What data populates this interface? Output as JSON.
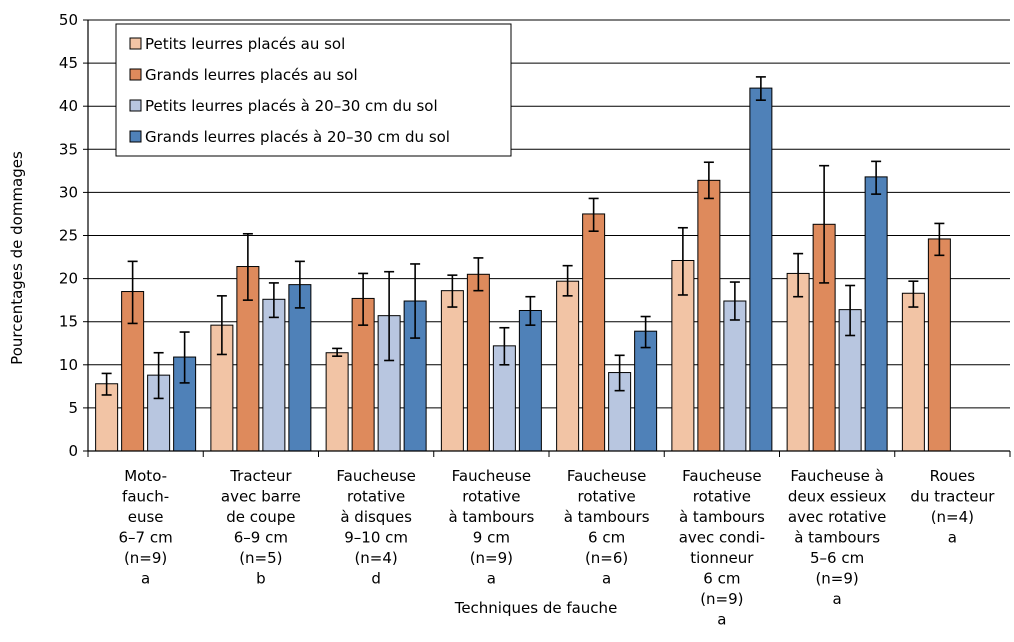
{
  "chart_data": {
    "type": "bar",
    "xlabel": "Techniques de fauche",
    "ylabel": "Pourcentages de dommages",
    "ylim": [
      0,
      50
    ],
    "yticks": [
      0,
      5,
      10,
      15,
      20,
      25,
      30,
      35,
      40,
      45,
      50
    ],
    "grid": true,
    "legend_position": "top-left",
    "categories": [
      [
        "Moto-",
        "fauch-",
        "euse",
        "6–7 cm",
        "(n=9)",
        "a"
      ],
      [
        "Tracteur",
        "avec barre",
        "de coupe",
        "6–9 cm",
        "(n=5)",
        "b"
      ],
      [
        "Faucheuse",
        "rotative",
        "à disques",
        "9–10 cm",
        "(n=4)",
        "d"
      ],
      [
        "Faucheuse",
        "rotative",
        "à tambours",
        "9 cm",
        "(n=9)",
        "a"
      ],
      [
        "Faucheuse",
        "rotative",
        "à tambours",
        "6 cm",
        "(n=6)",
        "a"
      ],
      [
        "Faucheuse",
        "rotative",
        "à tambours",
        "avec condi-",
        "tionneur",
        "6 cm",
        "(n=9)",
        "a"
      ],
      [
        "Faucheuse à",
        "deux essieux",
        "avec rotative",
        "à tambours",
        "5–6 cm",
        "(n=9)",
        "a"
      ],
      [
        "Roues",
        "du tracteur",
        "(n=4)",
        "a"
      ]
    ],
    "series": [
      {
        "name": "Petits leurres placés au sol",
        "color": "#f2c4a5",
        "values": [
          7.8,
          14.6,
          11.4,
          18.6,
          19.7,
          22.1,
          20.6,
          18.3
        ],
        "error_low": [
          6.5,
          11.2,
          11.0,
          16.7,
          18.0,
          18.1,
          17.9,
          16.7
        ],
        "error_high": [
          9.0,
          18.0,
          11.9,
          20.4,
          21.5,
          25.9,
          22.9,
          19.7
        ]
      },
      {
        "name": "Grands leurres placés au sol",
        "color": "#de8a5c",
        "values": [
          18.5,
          21.4,
          17.7,
          20.5,
          27.5,
          31.4,
          26.3,
          24.6
        ],
        "error_low": [
          14.8,
          17.5,
          14.6,
          18.6,
          25.5,
          29.3,
          19.5,
          22.7
        ],
        "error_high": [
          22.0,
          25.2,
          20.6,
          22.4,
          29.3,
          33.5,
          33.1,
          26.4
        ]
      },
      {
        "name": "Petits leurres placés à 20–30 cm du sol",
        "color": "#b8c6e0",
        "values": [
          8.8,
          17.6,
          15.7,
          12.2,
          9.1,
          17.4,
          16.4,
          null
        ],
        "error_low": [
          6.1,
          15.5,
          10.5,
          10.0,
          7.0,
          15.2,
          13.4,
          null
        ],
        "error_high": [
          11.4,
          19.5,
          20.8,
          14.3,
          11.1,
          19.6,
          19.2,
          null
        ]
      },
      {
        "name": "Grands leurres placés à 20–30 cm du sol",
        "color": "#4f81b8",
        "values": [
          10.9,
          19.3,
          17.4,
          16.3,
          13.9,
          42.1,
          31.8,
          null
        ],
        "error_low": [
          7.9,
          16.6,
          13.1,
          14.6,
          12.0,
          40.7,
          29.8,
          null
        ],
        "error_high": [
          13.8,
          22.0,
          21.7,
          17.9,
          15.6,
          43.4,
          33.6,
          null
        ]
      }
    ]
  }
}
